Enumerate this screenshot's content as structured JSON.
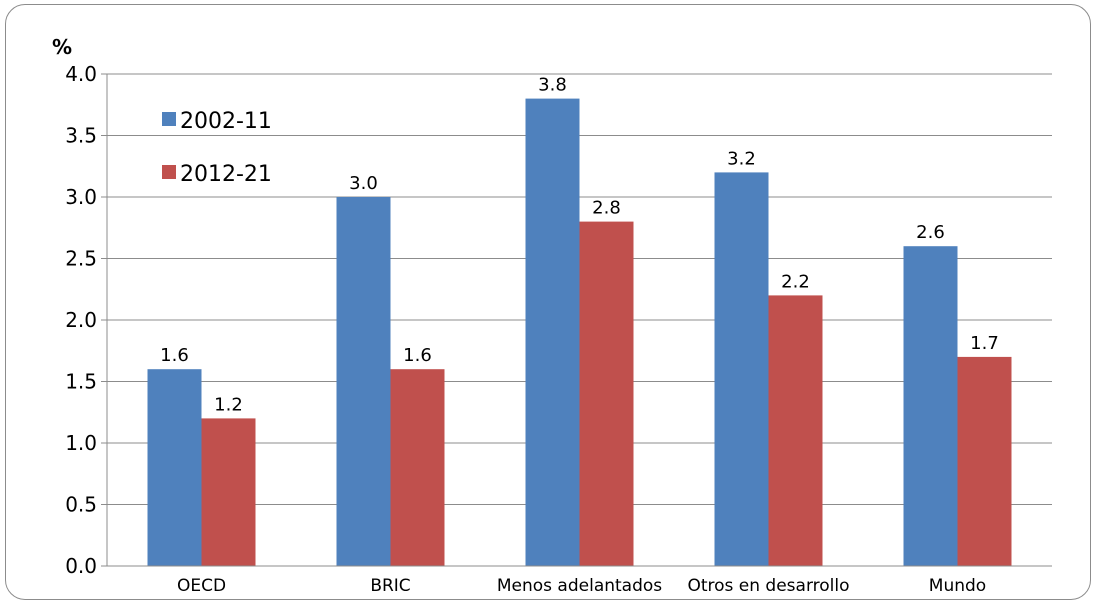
{
  "chart_data": {
    "type": "bar",
    "unit_label": "%",
    "categories": [
      "OECD",
      "BRIC",
      "Menos adelantados",
      "Otros en desarrollo",
      "Mundo"
    ],
    "series": [
      {
        "name": "2002-11",
        "color": "#4f81bd",
        "values": [
          1.6,
          3.0,
          3.8,
          3.2,
          2.6
        ],
        "labels": [
          "1.6",
          "3.0",
          "3.8",
          "3.2",
          "2.6"
        ]
      },
      {
        "name": "2012-21",
        "color": "#c0504d",
        "values": [
          1.2,
          1.6,
          2.8,
          2.2,
          1.7
        ],
        "labels": [
          "1.2",
          "1.6",
          "2.8",
          "2.2",
          "1.7"
        ]
      }
    ],
    "yticks": [
      "0.0",
      "0.5",
      "1.0",
      "1.5",
      "2.0",
      "2.5",
      "3.0",
      "3.5",
      "4.0"
    ],
    "ylim": [
      0,
      4
    ],
    "grid": true,
    "legend_position": "top-left"
  }
}
